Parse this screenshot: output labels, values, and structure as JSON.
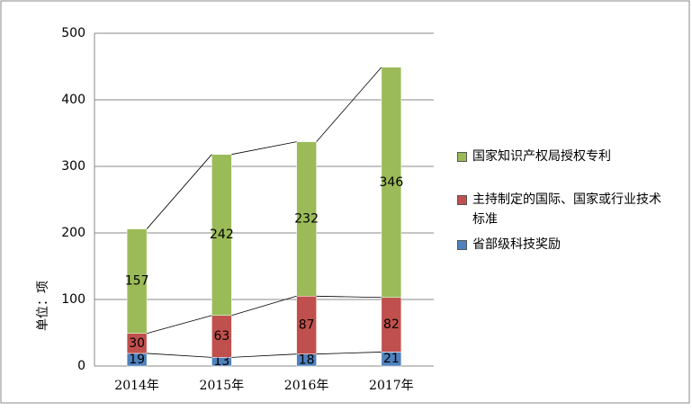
{
  "chart_data": {
    "type": "stacked-bar",
    "y_label": "单位：项",
    "categories": [
      "2014年",
      "2015年",
      "2016年",
      "2017年"
    ],
    "series": [
      {
        "name": "省部级科技奖励",
        "color": "#4f81bd",
        "values": [
          19,
          13,
          18,
          21
        ]
      },
      {
        "name": "主持制定的国际、国家或行业技术标准",
        "color": "#c0504d",
        "values": [
          30,
          63,
          87,
          82
        ]
      },
      {
        "name": "国家知识产权局授权专利",
        "color": "#9bbb59",
        "values": [
          157,
          242,
          232,
          346
        ]
      }
    ],
    "ylim": [
      0,
      500
    ],
    "yticks": [
      0,
      100,
      200,
      300,
      400,
      500
    ],
    "grid": true
  }
}
